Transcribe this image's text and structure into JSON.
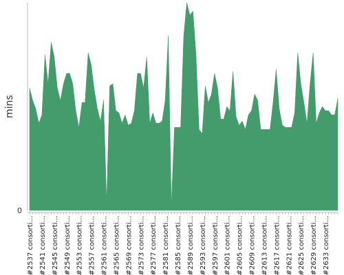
{
  "chart_data": {
    "type": "area",
    "title": "",
    "xlabel": "",
    "ylabel": "mins",
    "y_ticks": [
      "0"
    ],
    "ylim": [
      0,
      100
    ],
    "grid": false,
    "legend": "none",
    "color": "#449c6c",
    "x_tick_labels": [
      "#2537 consorti...",
      "#2541 consorti...",
      "#2545 consorti...",
      "#2549 consorti...",
      "#2553 consorti...",
      "#2557 consorti...",
      "#2561 consorti...",
      "#2565 consorti...",
      "#2569 consorti...",
      "#2573 consorti...",
      "#2577 consorti...",
      "#2581 consorti...",
      "#2585 consorti...",
      "#2589 consorti...",
      "#2593 consorti...",
      "#2597 consorti...",
      "#2601 consorti...",
      "#2605 consorti...",
      "#2609 consorti...",
      "#2613 consorti...",
      "#2617 consorti...",
      "#2621 consorti...",
      "#2625 consorti...",
      "#2629 consorti...",
      "#2633 consorti..."
    ],
    "series": [
      {
        "values": [
          59,
          53,
          49,
          42,
          46,
          75,
          61,
          81,
          74,
          59,
          53,
          61,
          66,
          66,
          61,
          48,
          40,
          52,
          52,
          76,
          70,
          58,
          49,
          43,
          53,
          4,
          60,
          61,
          48,
          47,
          42,
          46,
          41,
          42,
          48,
          66,
          66,
          59,
          74,
          42,
          47,
          42,
          42,
          43,
          53,
          84,
          3,
          40,
          40,
          40,
          84,
          100,
          94,
          96,
          75,
          39,
          37,
          60,
          52,
          56,
          66,
          59,
          44,
          44,
          50,
          48,
          67,
          45,
          41,
          43,
          39,
          46,
          48,
          56,
          53,
          39,
          39,
          39,
          39,
          52,
          68,
          49,
          41,
          40,
          40,
          40,
          47,
          76,
          61,
          52,
          42,
          61,
          76,
          42,
          47,
          50,
          48,
          48,
          46,
          46,
          54
        ]
      }
    ]
  }
}
